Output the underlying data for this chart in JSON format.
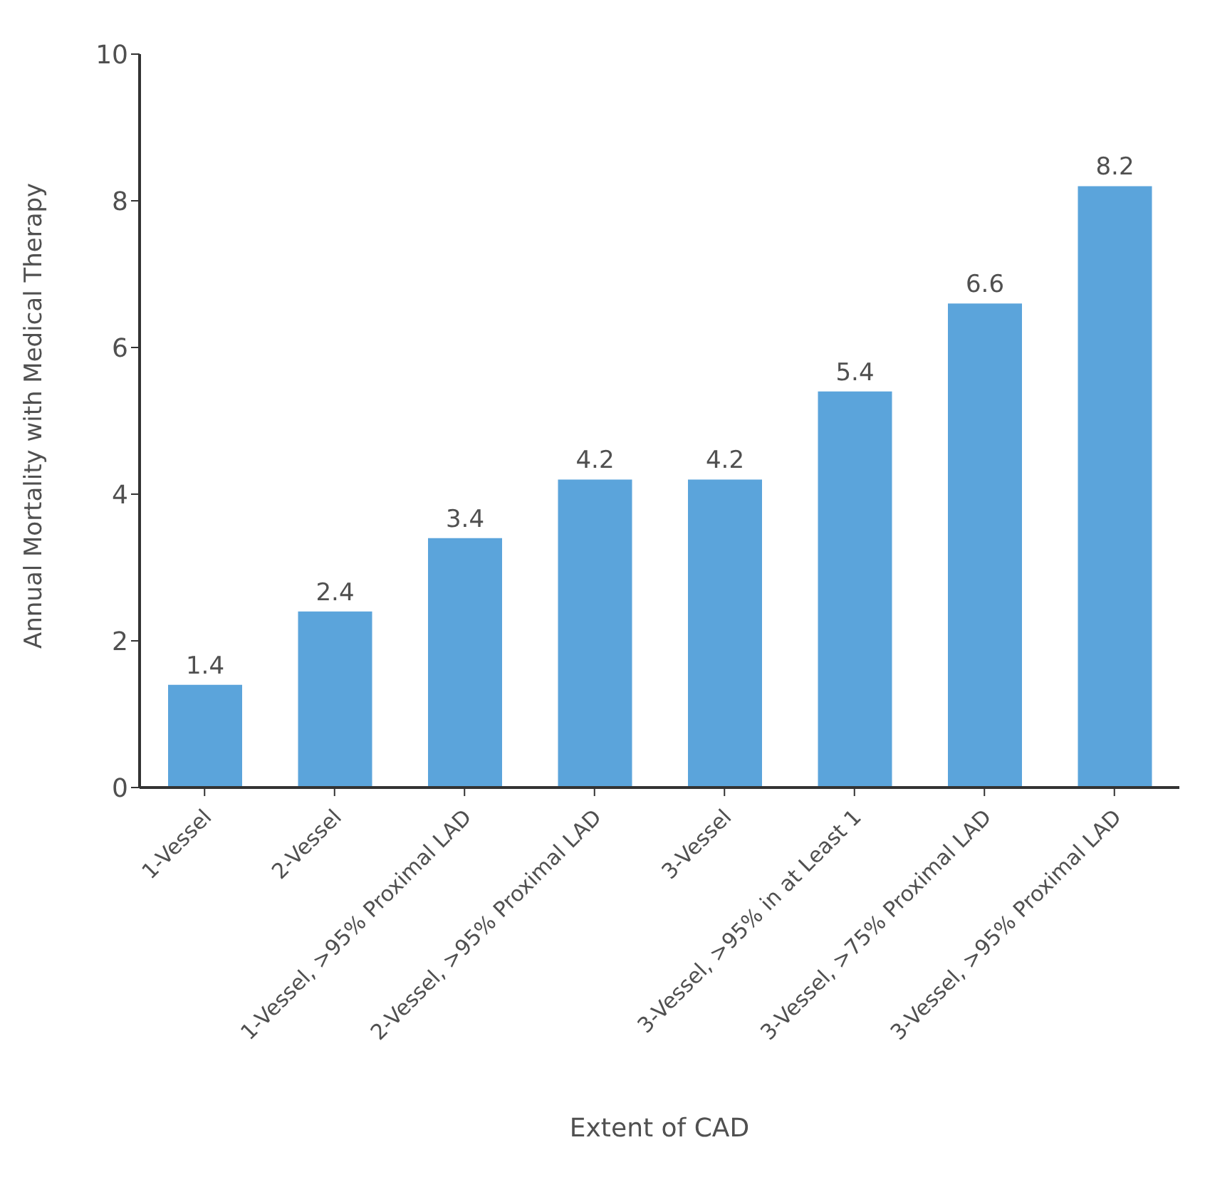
{
  "chart_data": {
    "type": "bar",
    "xlabel": "Extent of CAD",
    "ylabel": "Annual Mortality with Medical Therapy",
    "categories": [
      "1-Vessel",
      "2-Vessel",
      "1-Vessel, >95% Proximal LAD",
      "2-Vessel, >95% Proximal LAD",
      "3-Vessel",
      "3-Vessel, >95% in at Least 1",
      "3-Vessel, >75% Proximal LAD",
      "3-Vessel, >95% Proximal LAD"
    ],
    "values": [
      1.4,
      2.4,
      3.4,
      4.2,
      4.2,
      5.4,
      6.6,
      8.2
    ],
    "color": "#5ba4db",
    "ylim": [
      0,
      10
    ],
    "yticks": [
      0,
      2,
      4,
      6,
      8,
      10
    ],
    "data_labels": true,
    "grid": false,
    "legend": false
  }
}
